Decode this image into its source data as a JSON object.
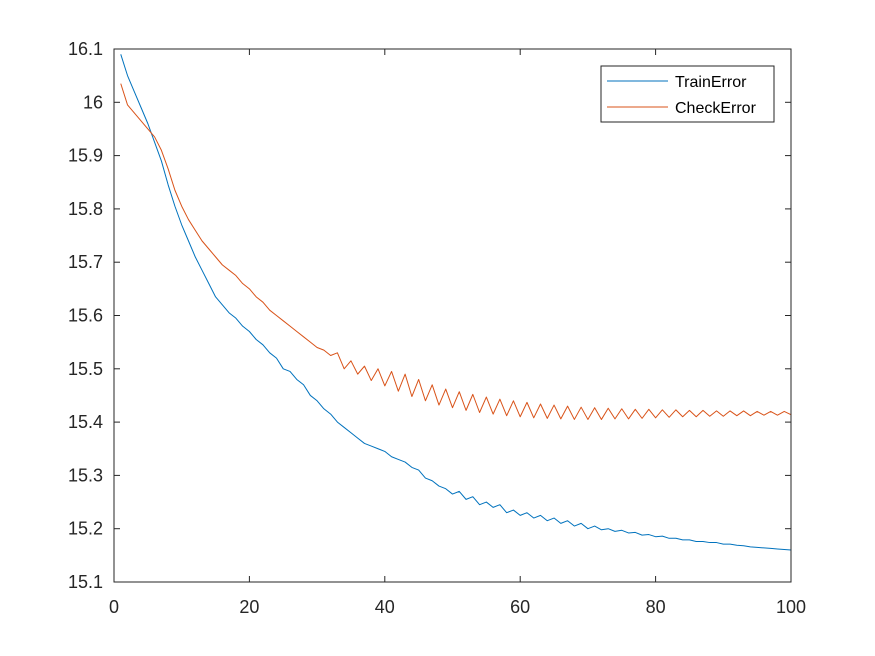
{
  "chart_data": {
    "type": "line",
    "title": "",
    "xlabel": "",
    "ylabel": "",
    "xlim": [
      0,
      100
    ],
    "ylim": [
      15.1,
      16.1
    ],
    "x_ticks": [
      0,
      20,
      40,
      60,
      80,
      100
    ],
    "x_tick_labels": [
      "0",
      "20",
      "40",
      "60",
      "80",
      "100"
    ],
    "y_ticks": [
      15.1,
      15.2,
      15.3,
      15.4,
      15.5,
      15.6,
      15.7,
      15.8,
      15.9,
      16.0,
      16.1
    ],
    "y_tick_labels": [
      "15.1",
      "15.2",
      "15.3",
      "15.4",
      "15.5",
      "15.6",
      "15.7",
      "15.8",
      "15.9",
      "16",
      "16.1"
    ],
    "grid": false,
    "legend_position": "top-right",
    "series": [
      {
        "name": "TrainError",
        "color": "#0072BD",
        "x": [
          1,
          2,
          3,
          4,
          5,
          6,
          7,
          8,
          9,
          10,
          11,
          12,
          13,
          14,
          15,
          16,
          17,
          18,
          19,
          20,
          21,
          22,
          23,
          24,
          25,
          26,
          27,
          28,
          29,
          30,
          31,
          32,
          33,
          34,
          35,
          36,
          37,
          38,
          39,
          40,
          41,
          42,
          43,
          44,
          45,
          46,
          47,
          48,
          49,
          50,
          51,
          52,
          53,
          54,
          55,
          56,
          57,
          58,
          59,
          60,
          61,
          62,
          63,
          64,
          65,
          66,
          67,
          68,
          69,
          70,
          71,
          72,
          73,
          74,
          75,
          76,
          77,
          78,
          79,
          80,
          81,
          82,
          83,
          84,
          85,
          86,
          87,
          88,
          89,
          90,
          91,
          92,
          93,
          94,
          95,
          96,
          97,
          98,
          99,
          100
        ],
        "y": [
          16.09,
          16.05,
          16.02,
          15.99,
          15.96,
          15.925,
          15.89,
          15.845,
          15.805,
          15.77,
          15.74,
          15.71,
          15.685,
          15.66,
          15.635,
          15.62,
          15.605,
          15.595,
          15.58,
          15.57,
          15.555,
          15.545,
          15.53,
          15.52,
          15.5,
          15.495,
          15.48,
          15.47,
          15.45,
          15.44,
          15.425,
          15.415,
          15.4,
          15.39,
          15.38,
          15.37,
          15.36,
          15.355,
          15.35,
          15.345,
          15.335,
          15.33,
          15.325,
          15.315,
          15.31,
          15.295,
          15.29,
          15.28,
          15.275,
          15.265,
          15.27,
          15.255,
          15.26,
          15.245,
          15.25,
          15.24,
          15.245,
          15.23,
          15.235,
          15.225,
          15.23,
          15.22,
          15.225,
          15.215,
          15.22,
          15.21,
          15.215,
          15.205,
          15.21,
          15.2,
          15.205,
          15.198,
          15.2,
          15.195,
          15.197,
          15.192,
          15.193,
          15.188,
          15.189,
          15.185,
          15.186,
          15.182,
          15.182,
          15.179,
          15.179,
          15.176,
          15.176,
          15.174,
          15.174,
          15.171,
          15.171,
          15.169,
          15.168,
          15.166,
          15.165,
          15.164,
          15.163,
          15.162,
          15.161,
          15.16
        ]
      },
      {
        "name": "CheckError",
        "color": "#D95319",
        "x": [
          1,
          2,
          3,
          4,
          5,
          6,
          7,
          8,
          9,
          10,
          11,
          12,
          13,
          14,
          15,
          16,
          17,
          18,
          19,
          20,
          21,
          22,
          23,
          24,
          25,
          26,
          27,
          28,
          29,
          30,
          31,
          32,
          33,
          34,
          35,
          36,
          37,
          38,
          39,
          40,
          41,
          42,
          43,
          44,
          45,
          46,
          47,
          48,
          49,
          50,
          51,
          52,
          53,
          54,
          55,
          56,
          57,
          58,
          59,
          60,
          61,
          62,
          63,
          64,
          65,
          66,
          67,
          68,
          69,
          70,
          71,
          72,
          73,
          74,
          75,
          76,
          77,
          78,
          79,
          80,
          81,
          82,
          83,
          84,
          85,
          86,
          87,
          88,
          89,
          90,
          91,
          92,
          93,
          94,
          95,
          96,
          97,
          98,
          99,
          100
        ],
        "y": [
          16.035,
          15.995,
          15.98,
          15.965,
          15.95,
          15.935,
          15.91,
          15.875,
          15.835,
          15.805,
          15.78,
          15.76,
          15.74,
          15.725,
          15.71,
          15.695,
          15.685,
          15.675,
          15.66,
          15.65,
          15.635,
          15.625,
          15.61,
          15.6,
          15.59,
          15.58,
          15.57,
          15.56,
          15.55,
          15.54,
          15.535,
          15.525,
          15.53,
          15.5,
          15.515,
          15.49,
          15.505,
          15.478,
          15.5,
          15.468,
          15.495,
          15.458,
          15.49,
          15.448,
          15.48,
          15.44,
          15.47,
          15.432,
          15.462,
          15.427,
          15.457,
          15.422,
          15.452,
          15.418,
          15.447,
          15.415,
          15.443,
          15.412,
          15.44,
          15.41,
          15.437,
          15.408,
          15.434,
          15.407,
          15.432,
          15.406,
          15.43,
          15.405,
          15.428,
          15.405,
          15.427,
          15.405,
          15.426,
          15.406,
          15.425,
          15.406,
          15.424,
          15.407,
          15.424,
          15.408,
          15.423,
          15.409,
          15.423,
          15.41,
          15.422,
          15.41,
          15.422,
          15.411,
          15.421,
          15.411,
          15.421,
          15.412,
          15.421,
          15.412,
          15.42,
          15.413,
          15.42,
          15.413,
          15.42,
          15.414
        ]
      }
    ]
  }
}
